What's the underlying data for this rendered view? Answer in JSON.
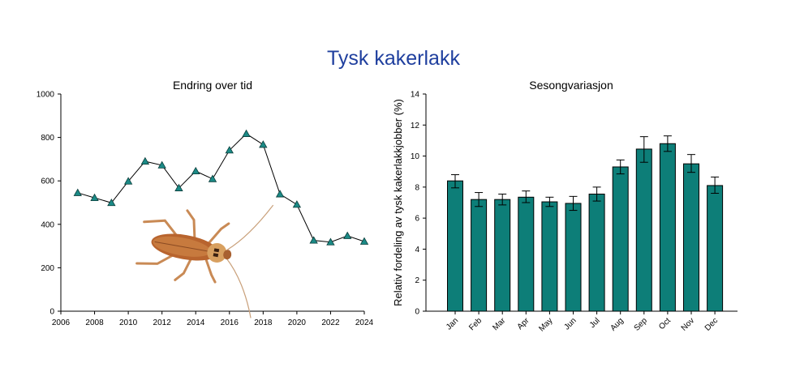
{
  "title": "Tysk kakerlakk",
  "colors": {
    "title": "#1f3f9e",
    "marker": "#1b8a86",
    "bar": "#0d7e78",
    "line": "#000000"
  },
  "illustration": {
    "icon": "cockroach-illustration"
  },
  "chart_data": [
    {
      "type": "line",
      "title": "Endring over tid",
      "xlabel": "",
      "ylabel": "",
      "xlim": [
        2006,
        2024
      ],
      "ylim": [
        0,
        1000
      ],
      "xticks": [
        "2006",
        "2008",
        "2010",
        "2012",
        "2014",
        "2016",
        "2018",
        "2020",
        "2022",
        "2024"
      ],
      "yticks": [
        "0",
        "200",
        "400",
        "600",
        "800",
        "1000"
      ],
      "marker": "triangle",
      "grid": false,
      "x": [
        2007,
        2008,
        2009,
        2010,
        2011,
        2012,
        2013,
        2014,
        2015,
        2016,
        2017,
        2018,
        2019,
        2020,
        2021,
        2022,
        2023,
        2024
      ],
      "y": [
        545,
        522,
        499,
        598,
        690,
        672,
        567,
        645,
        609,
        741,
        817,
        767,
        539,
        491,
        326,
        318,
        347,
        321
      ]
    },
    {
      "type": "bar",
      "title": "Sesongvariasjon",
      "xlabel": "",
      "ylabel": "Relativ fordeling av tysk kakerlakkjobber (%)",
      "ylim": [
        0,
        14
      ],
      "yticks": [
        "0",
        "2",
        "4",
        "6",
        "8",
        "10",
        "12",
        "14"
      ],
      "grid": false,
      "categories": [
        "Jan",
        "Feb",
        "Mar",
        "Apr",
        "May",
        "Jun",
        "Jul",
        "Aug",
        "Sep",
        "Oct",
        "Nov",
        "Dec"
      ],
      "values": [
        8.4,
        7.2,
        7.2,
        7.35,
        7.05,
        6.95,
        7.55,
        9.3,
        10.45,
        10.8,
        9.5,
        8.1
      ],
      "error_low": [
        7.95,
        6.75,
        6.85,
        7.0,
        6.75,
        6.5,
        7.1,
        8.85,
        9.6,
        10.3,
        8.95,
        7.6
      ],
      "error_high": [
        8.8,
        7.65,
        7.55,
        7.75,
        7.35,
        7.4,
        8.0,
        9.75,
        11.25,
        11.3,
        10.1,
        8.65
      ]
    }
  ]
}
